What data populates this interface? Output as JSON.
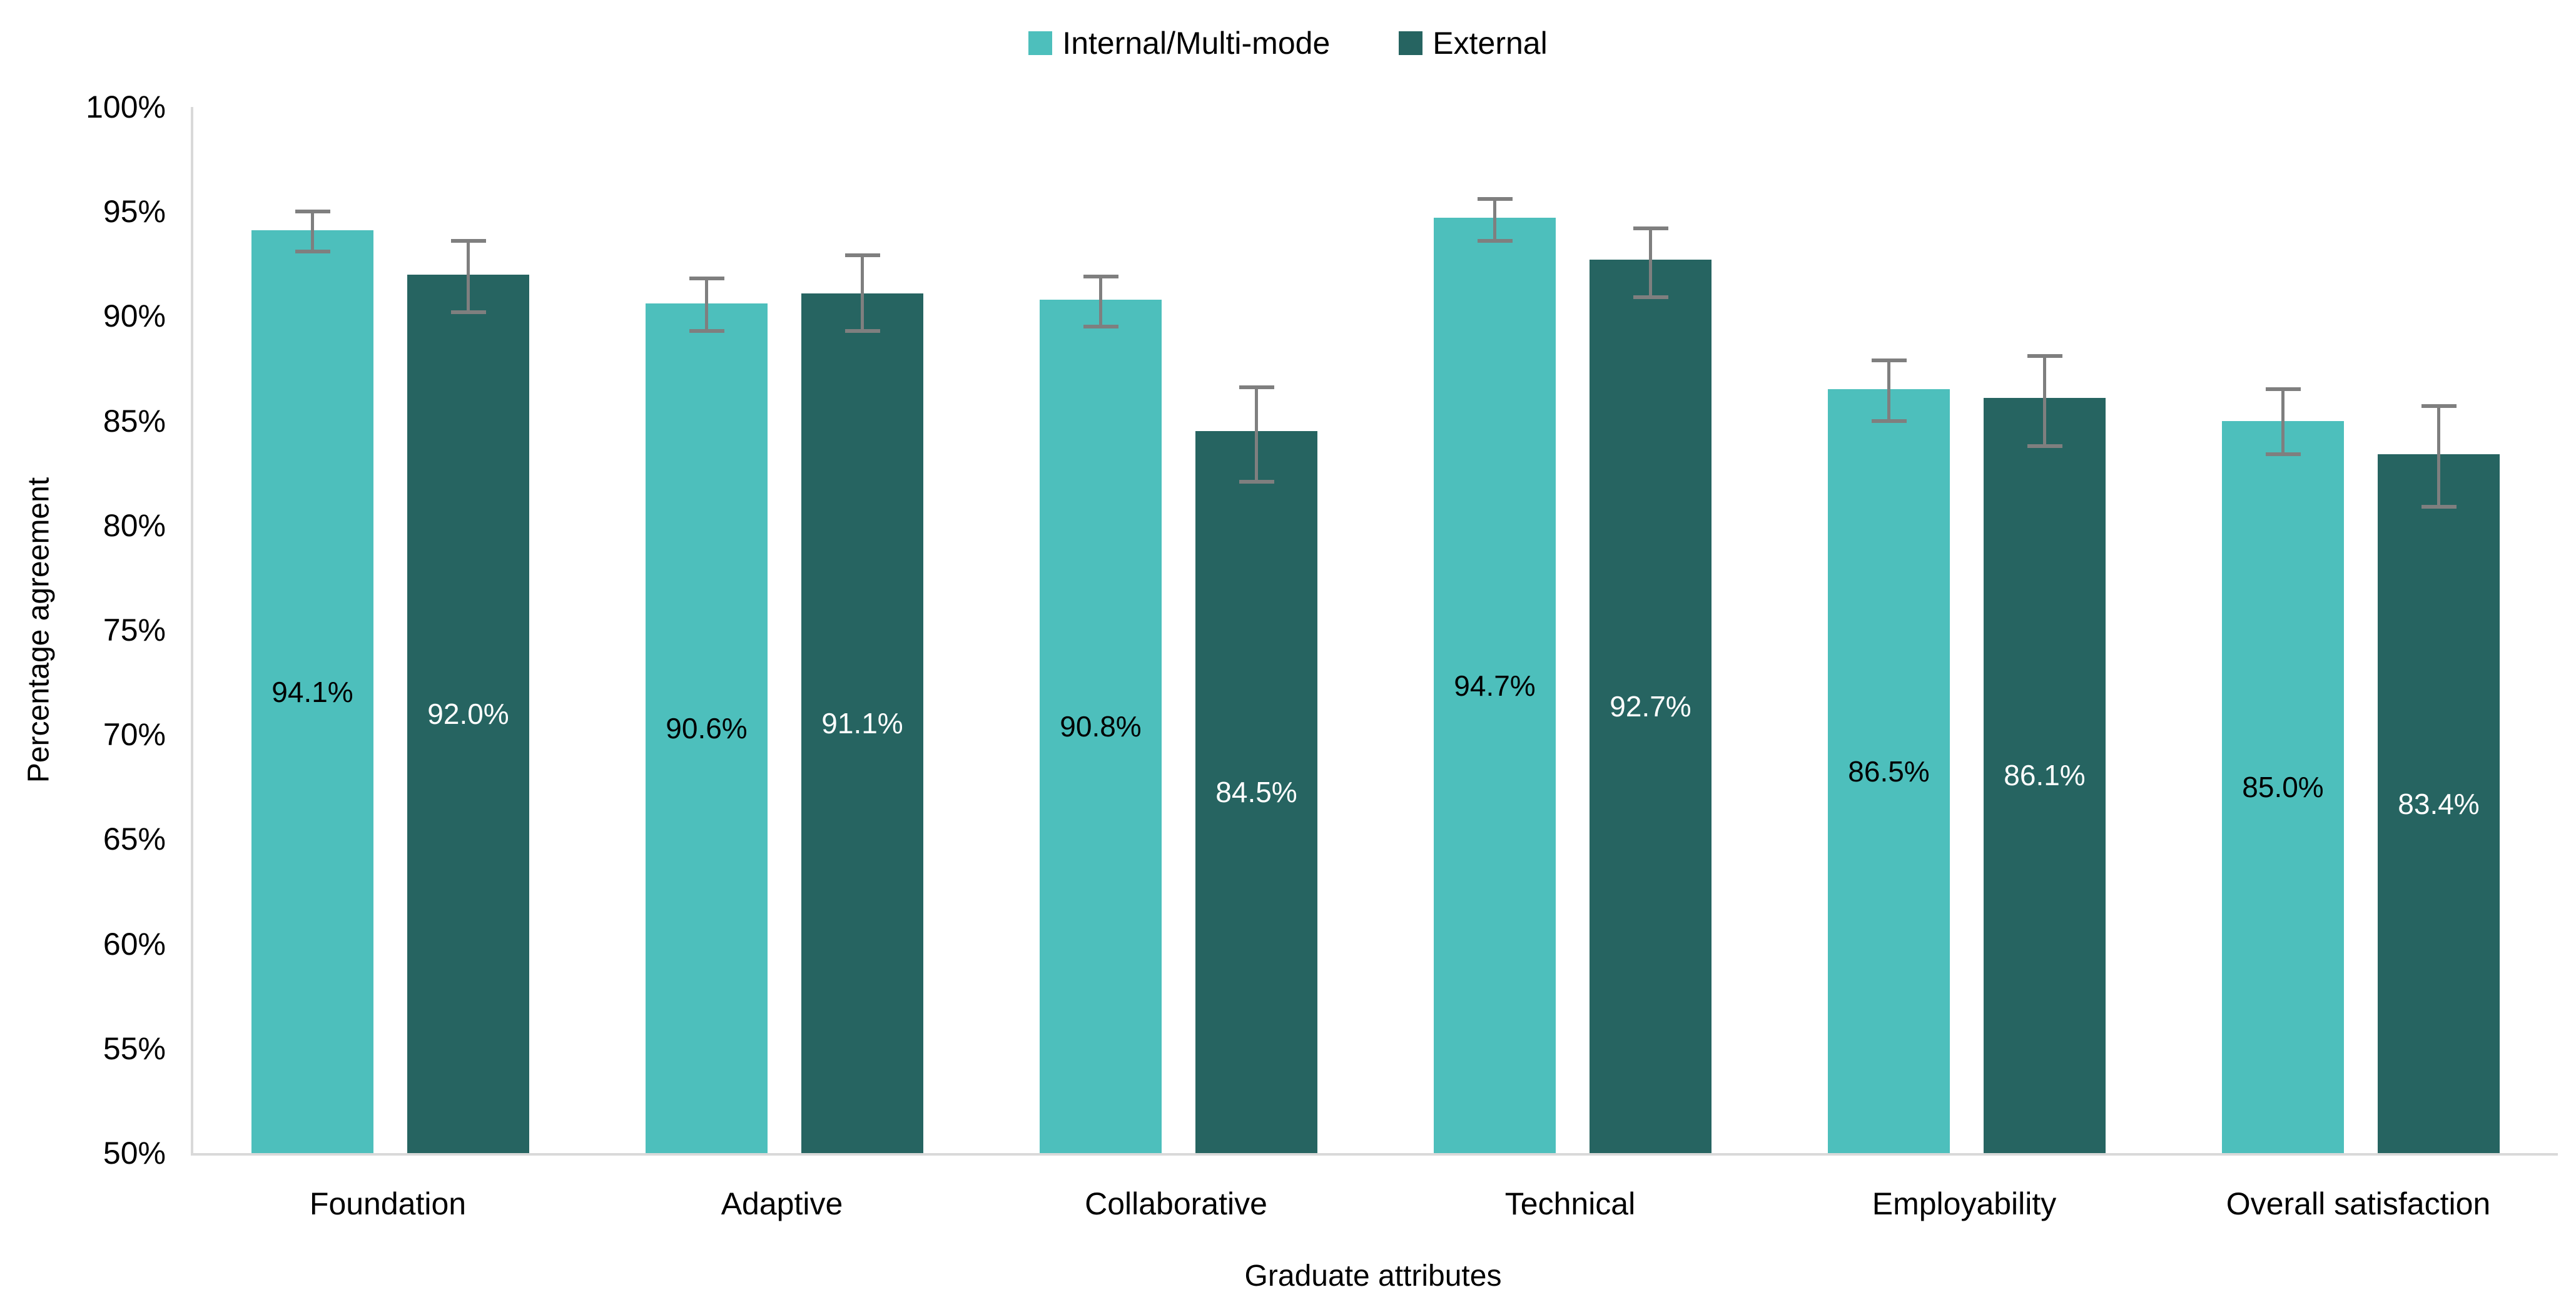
{
  "legend": {
    "items": [
      {
        "label": "Internal/Multi-mode",
        "color": "#4DBFBC"
      },
      {
        "label": "External",
        "color": "#266461"
      }
    ]
  },
  "chart_data": {
    "type": "bar",
    "title": "",
    "xlabel": "Graduate attributes",
    "ylabel": "Percentage agreement",
    "categories": [
      "Foundation",
      "Adaptive",
      "Collaborative",
      "Technical",
      "Employability",
      "Overall satisfaction"
    ],
    "series": [
      {
        "name": "Internal/Multi-mode",
        "color": "#4DBFBC",
        "label_color": "#000000",
        "values": [
          94.1,
          90.6,
          90.8,
          94.7,
          86.5,
          85.0
        ],
        "labels": [
          "94.1%",
          "90.6%",
          "90.8%",
          "94.7%",
          "86.5%",
          "85.0%"
        ],
        "ci_upper": [
          95.0,
          91.8,
          91.9,
          95.6,
          87.9,
          86.5
        ],
        "ci_lower": [
          93.1,
          89.3,
          89.5,
          93.6,
          85.0,
          83.4
        ]
      },
      {
        "name": "External",
        "color": "#266461",
        "label_color": "#FFFFFF",
        "values": [
          92.0,
          91.1,
          84.5,
          92.7,
          86.1,
          83.4
        ],
        "labels": [
          "92.0%",
          "91.1%",
          "84.5%",
          "92.7%",
          "86.1%",
          "83.4%"
        ],
        "ci_upper": [
          93.6,
          92.9,
          86.6,
          94.2,
          88.1,
          85.7
        ],
        "ci_lower": [
          90.2,
          89.3,
          82.1,
          90.9,
          83.8,
          80.9
        ]
      }
    ],
    "ylim": [
      50,
      100
    ],
    "ytick_step": 5,
    "yticks": [
      "100%",
      "95%",
      "90%",
      "85%",
      "80%",
      "75%",
      "70%",
      "65%",
      "60%",
      "55%",
      "50%"
    ],
    "grid": false,
    "legend_position": "top",
    "error_bar_color": "#7F7F7F",
    "axis_line_color": "#D9D9D9",
    "bar_value_label_position": "inside-center"
  }
}
